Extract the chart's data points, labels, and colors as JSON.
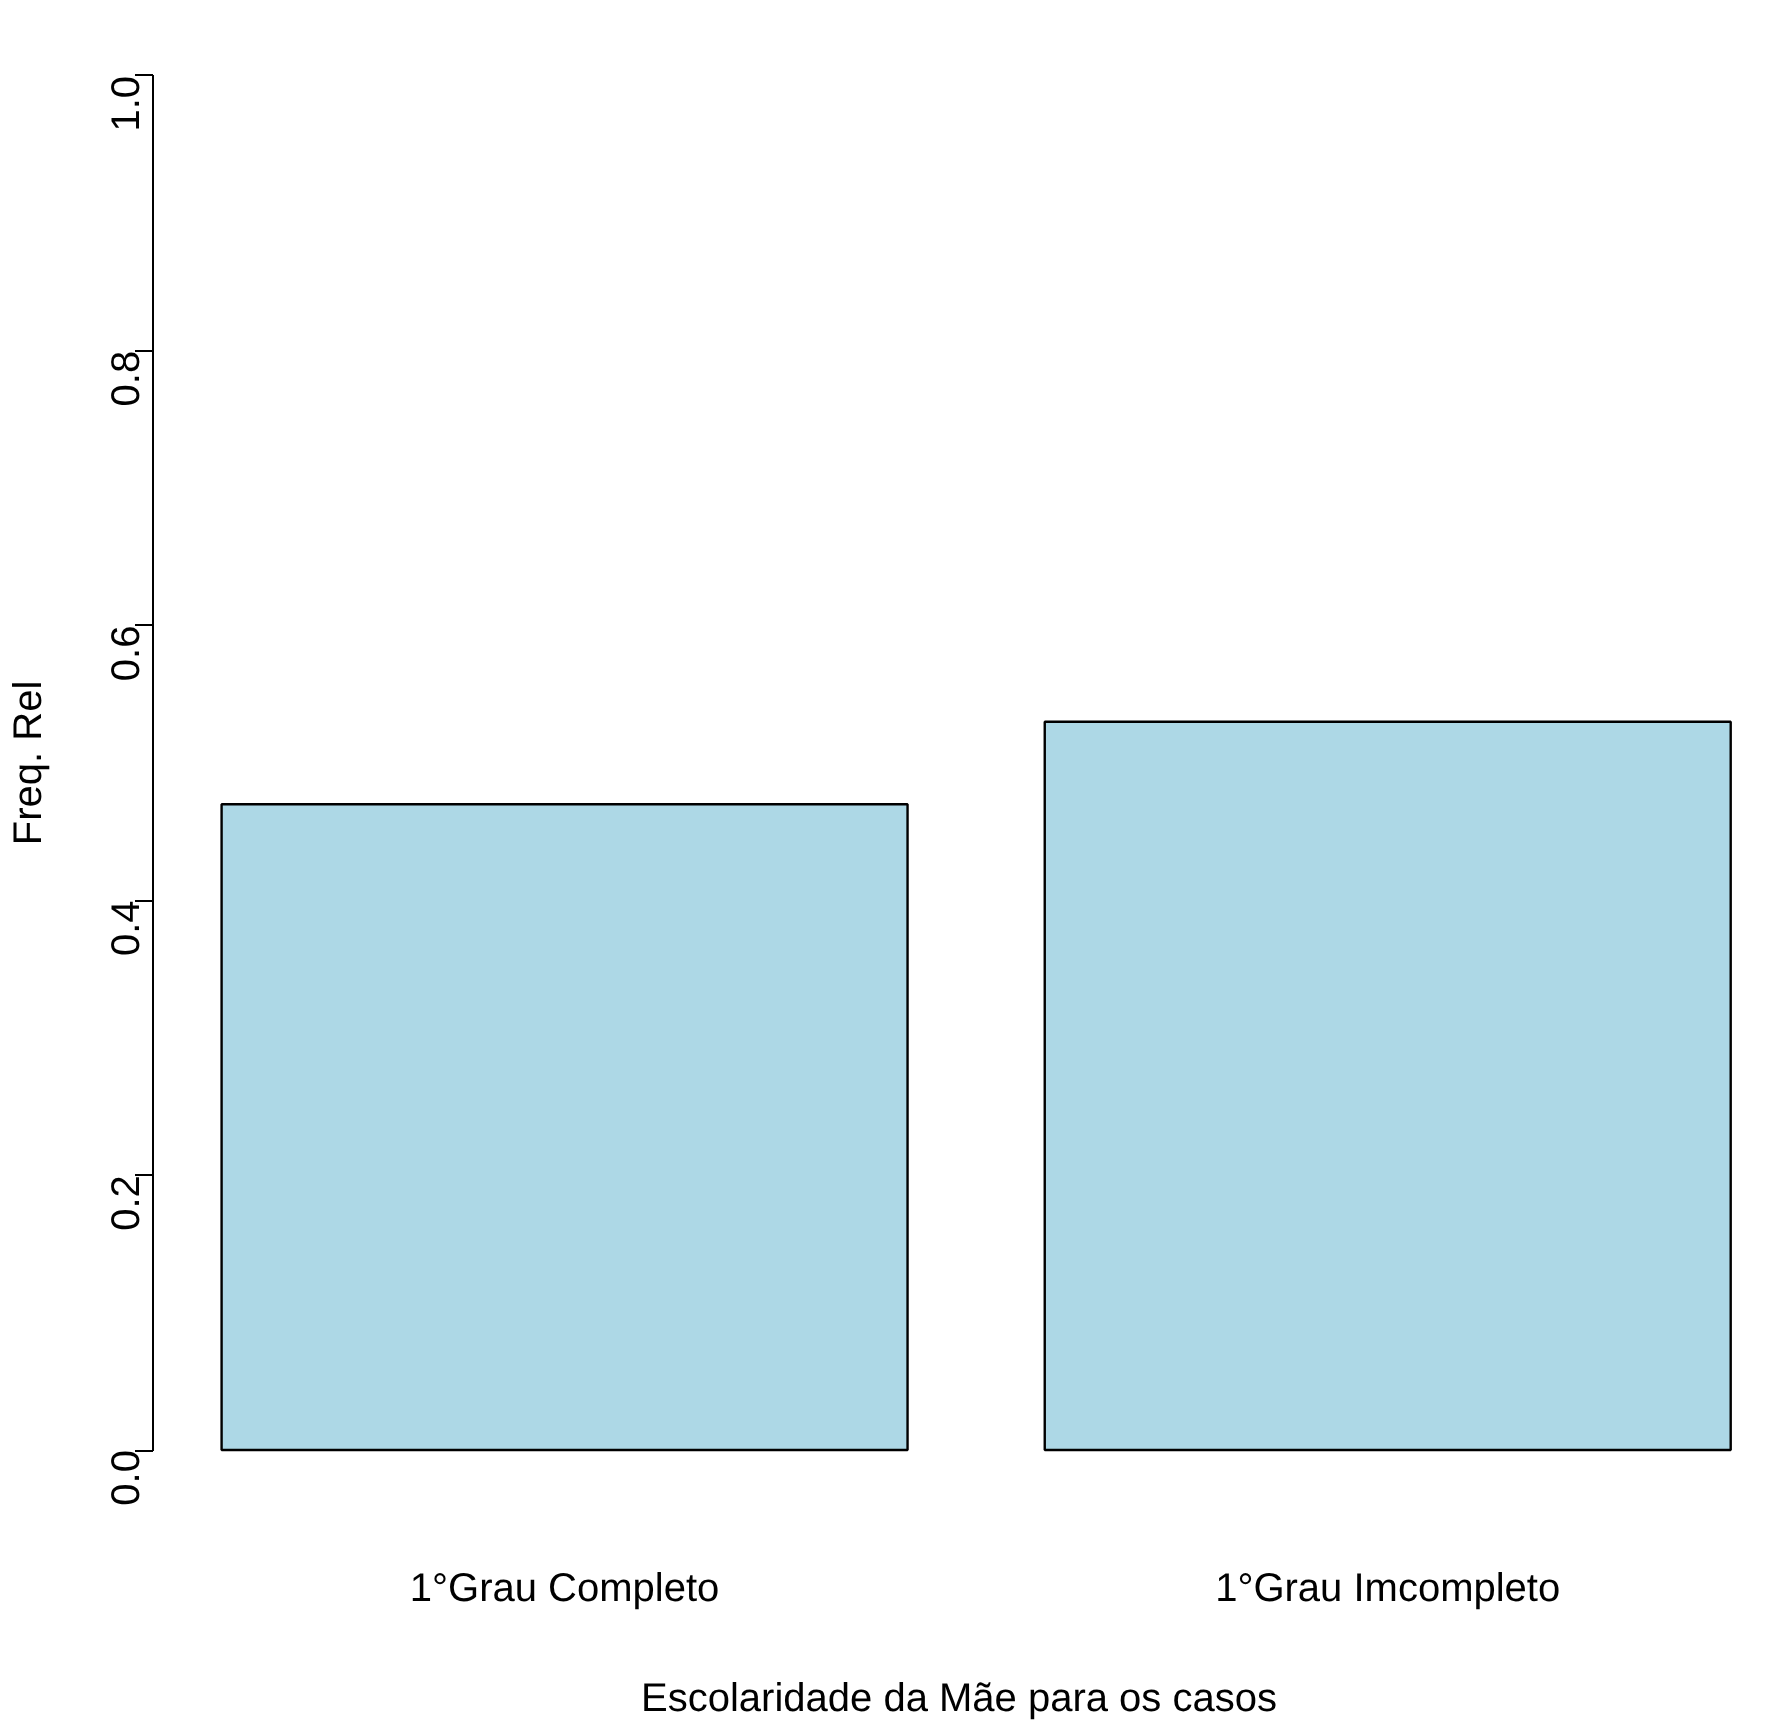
{
  "chart_data": {
    "type": "bar",
    "xlabel": "Escolaridade da Mãe para os casos",
    "ylabel": "Freq. Rel",
    "categories": [
      "1°Grau Completo",
      "1°Grau Imcompleto"
    ],
    "values": [
      0.47,
      0.53
    ],
    "color": "#add8e6",
    "ylim": [
      0,
      1
    ],
    "yticks": [
      {
        "value": 0,
        "label": "0.0"
      },
      {
        "value": 0.2,
        "label": "0.2"
      },
      {
        "value": 0.4,
        "label": "0.4"
      },
      {
        "value": 0.6,
        "label": "0.6"
      },
      {
        "value": 0.8,
        "label": "0.8"
      },
      {
        "value": 1,
        "label": "1.0"
      }
    ],
    "grid": false
  }
}
